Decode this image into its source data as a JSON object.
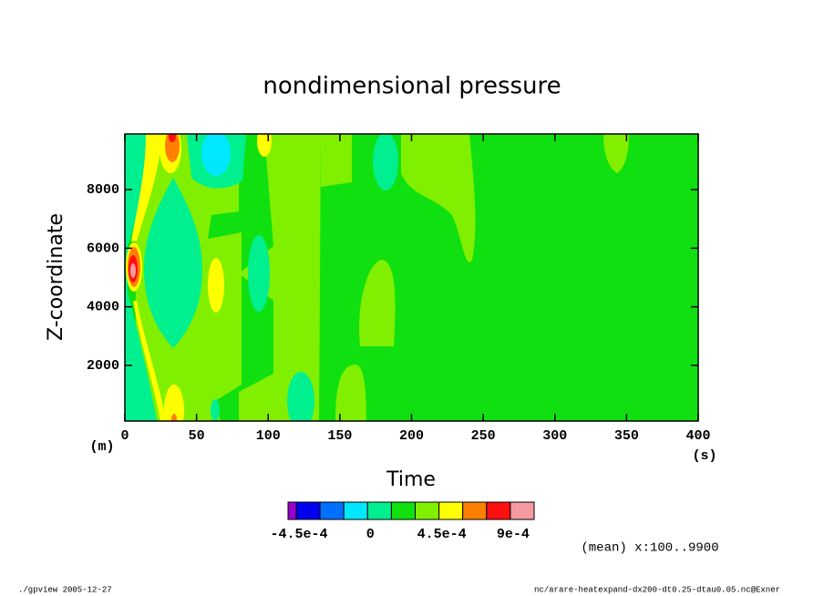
{
  "chart_data": {
    "type": "contour",
    "title": "nondimensional pressure",
    "x_label": "Time",
    "y_label": "Z-coordinate",
    "x_unit": "(s)",
    "y_unit": "(m)",
    "xlim": [
      0,
      400
    ],
    "xticks": [
      0,
      50,
      100,
      150,
      200,
      250,
      300,
      350,
      400
    ],
    "ylim": [
      100,
      9900
    ],
    "yticks": [
      2000,
      4000,
      6000,
      8000
    ],
    "colorbar": {
      "levels": [
        -0.00045,
        -0.0003,
        -0.00015,
        0,
        0.00015,
        0.0003,
        0.00045,
        0.0006,
        0.00075,
        0.0009
      ],
      "colors": [
        "#9900cc",
        "#0000ee",
        "#0070ff",
        "#00e8ff",
        "#00f090",
        "#10e010",
        "#80f000",
        "#ffff00",
        "#ff8000",
        "#ff1010",
        "#f49aa0"
      ],
      "ticks": [
        {
          "value": -0.00045,
          "label": "-4.5e-4"
        },
        0,
        {
          "value": 0.00045,
          "label": "4.5e-4"
        },
        {
          "value": 0.0009,
          "label": "9e-4"
        }
      ]
    },
    "annotations": [
      "(mean) x:100..9900",
      "./gpview  2005-12-27",
      "nc/arare-heatexpand-dx200-dt0.25-dtau0.05.nc@Exner"
    ]
  }
}
